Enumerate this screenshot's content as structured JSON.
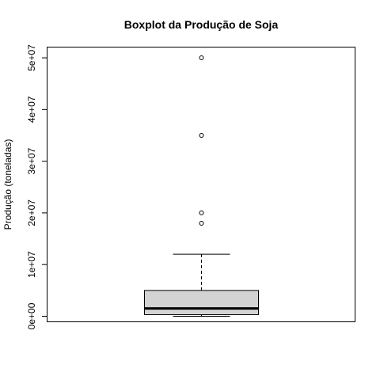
{
  "chart_data": {
    "type": "boxplot",
    "title": "Boxplot da Produção de Soja",
    "xlabel": "",
    "ylabel": "Produção (toneladas)",
    "ylim": [
      -1000000,
      52000000
    ],
    "y_ticks": [
      0,
      10000000,
      20000000,
      30000000,
      40000000,
      50000000
    ],
    "y_tick_labels": [
      "0e+00",
      "1e+07",
      "2e+07",
      "3e+07",
      "4e+07",
      "5e+07"
    ],
    "box": {
      "min": 0,
      "q1": 300000,
      "median": 1500000,
      "q3": 5000000,
      "whisker_high": 12000000,
      "outliers": [
        18000000,
        20000000,
        35000000,
        50000000
      ]
    },
    "box_fill": "#d3d3d3",
    "line_color": "#000000"
  }
}
